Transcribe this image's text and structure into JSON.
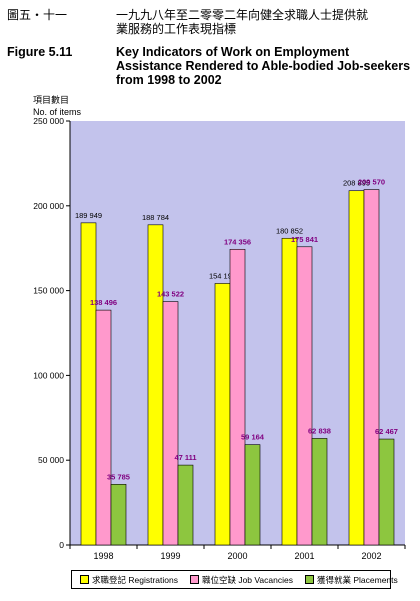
{
  "header": {
    "cn_label": "圖五・十一",
    "cn_title_line1": "一九九八年至二零零二年向健全求職人士提供就",
    "cn_title_line2": "業服務的工作表現指標",
    "en_label": "Figure 5.11",
    "en_title_line1": "Key Indicators of Work on Employment",
    "en_title_line2": "Assistance Rendered to Able-bodied Job-seekers",
    "en_title_line3": "from 1998 to 2002"
  },
  "chart_data": {
    "type": "bar",
    "categories": [
      "1998",
      "1999",
      "2000",
      "2001",
      "2002"
    ],
    "ylabel_cn": "項目數目",
    "ylabel_en": "No. of items",
    "ylim": [
      0,
      250000
    ],
    "yticks": [
      0,
      50000,
      100000,
      150000,
      200000,
      250000
    ],
    "ytick_labels": [
      "0",
      "50 000",
      "100 000",
      "150 000",
      "200 000",
      "250 000"
    ],
    "grid": false,
    "legend_position": "bottom",
    "series": [
      {
        "name": "求職登記 Registrations",
        "color": "#ffff00",
        "label_color": "#000000",
        "values": [
          189949,
          188784,
          154194,
          180852,
          208895
        ],
        "labels": [
          "189 949",
          "188 784",
          "154 194",
          "180 852",
          "208 895"
        ]
      },
      {
        "name": "職位空缺 Job Vacancies",
        "color": "#ff99cc",
        "label_color": "#800080",
        "values": [
          138496,
          143522,
          174356,
          175841,
          209570
        ],
        "labels": [
          "138 496",
          "143 522",
          "174 356",
          "175 841",
          "209 570"
        ]
      },
      {
        "name": "獲得就業 Placements",
        "color": "#8dc63f",
        "label_color": "#800080",
        "values": [
          35785,
          47111,
          59164,
          62838,
          62467
        ],
        "labels": [
          "35 785",
          "47 111",
          "59 164",
          "62 838",
          "62 467"
        ]
      }
    ],
    "colors": {
      "plot_background": "#c3c3ec"
    }
  }
}
